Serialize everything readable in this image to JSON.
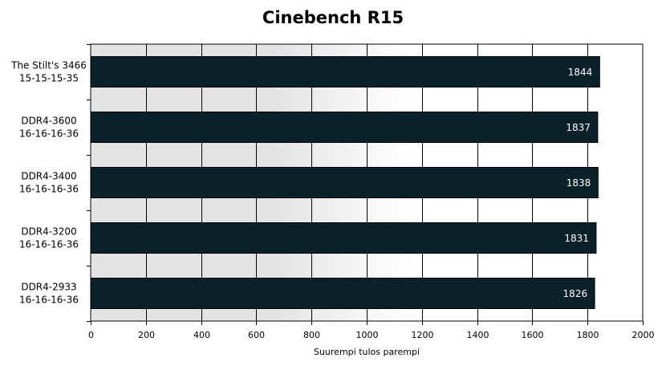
{
  "chart_data": {
    "type": "bar",
    "orientation": "horizontal",
    "title": "Cinebench R15",
    "xlabel": "Suurempi tulos parempi",
    "ylabel": "",
    "xlim": [
      0,
      2000
    ],
    "xticks": [
      0,
      200,
      400,
      600,
      800,
      1000,
      1200,
      1400,
      1600,
      1800,
      2000
    ],
    "grid": "vertical",
    "legend": "none",
    "categories": [
      [
        "The Stilt's 3466",
        "15-15-15-35"
      ],
      [
        "DDR4-3600",
        "16-16-16-36"
      ],
      [
        "DDR4-3400",
        "16-16-16-36"
      ],
      [
        "DDR4-3200",
        "16-16-16-36"
      ],
      [
        "DDR4-2933",
        "16-16-16-36"
      ]
    ],
    "values": [
      1844,
      1837,
      1838,
      1831,
      1826
    ],
    "bar_color": "#0b2129",
    "background_gradient": [
      "#e3e3e3",
      "#ffffff"
    ]
  }
}
